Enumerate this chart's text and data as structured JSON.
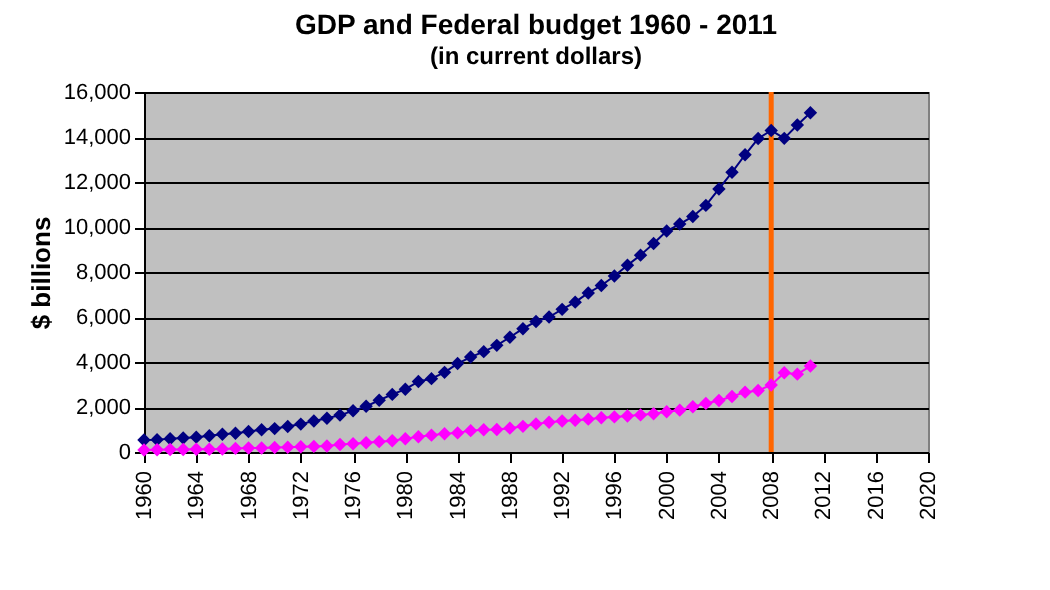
{
  "chart_data": {
    "type": "line",
    "title": "GDP and Federal budget 1960 - 2011",
    "subtitle": "(in current dollars)",
    "ylabel": "$ billions",
    "x": [
      1960,
      1961,
      1962,
      1963,
      1964,
      1965,
      1966,
      1967,
      1968,
      1969,
      1970,
      1971,
      1972,
      1973,
      1974,
      1975,
      1976,
      1977,
      1978,
      1979,
      1980,
      1981,
      1982,
      1983,
      1984,
      1985,
      1986,
      1987,
      1988,
      1989,
      1990,
      1991,
      1992,
      1993,
      1994,
      1995,
      1996,
      1997,
      1998,
      1999,
      2000,
      2001,
      2002,
      2003,
      2004,
      2005,
      2006,
      2007,
      2008,
      2009,
      2010,
      2011
    ],
    "series": [
      {
        "color": "#000080",
        "values": [
          530,
          550,
          590,
          620,
          660,
          720,
          790,
          830,
          910,
          990,
          1040,
          1130,
          1240,
          1380,
          1500,
          1640,
          1830,
          2030,
          2300,
          2560,
          2790,
          3130,
          3260,
          3540,
          3930,
          4220,
          4460,
          4740,
          5100,
          5480,
          5800,
          6000,
          6340,
          6660,
          7070,
          7400,
          7820,
          8300,
          8750,
          9270,
          9820,
          10130,
          10470,
          10960,
          11690,
          12430,
          13210,
          13930,
          14290,
          13940,
          14530,
          15080
        ]
      },
      {
        "color": "#ff00ff",
        "values": [
          90,
          100,
          110,
          110,
          120,
          120,
          130,
          160,
          180,
          180,
          200,
          210,
          230,
          250,
          270,
          330,
          370,
          410,
          460,
          500,
          590,
          680,
          750,
          810,
          850,
          950,
          990,
          1000,
          1060,
          1140,
          1250,
          1320,
          1380,
          1410,
          1460,
          1520,
          1560,
          1600,
          1650,
          1700,
          1790,
          1860,
          2010,
          2160,
          2290,
          2470,
          2660,
          2730,
          2980,
          3520,
          3460,
          3820
        ]
      }
    ],
    "xlim": [
      1960,
      2020
    ],
    "xticks": [
      1960,
      1964,
      1968,
      1972,
      1976,
      1980,
      1984,
      1988,
      1992,
      1996,
      2000,
      2004,
      2008,
      2012,
      2016,
      2020
    ],
    "ylim": [
      0,
      16000
    ],
    "yticks": [
      0,
      {
        "value": 2000,
        "label": "2,000"
      },
      {
        "value": 4000,
        "label": "4,000"
      },
      {
        "value": 6000,
        "label": "6,000"
      },
      {
        "value": 8000,
        "label": "8,000"
      },
      {
        "value": 10000,
        "label": "10,000"
      },
      {
        "value": 12000,
        "label": "12,000"
      },
      {
        "value": 14000,
        "label": "14,000"
      },
      {
        "value": 16000,
        "label": "16,000"
      }
    ],
    "ref_lines": [
      {
        "axis": "x",
        "value": 2008,
        "color": "#ff6600"
      }
    ],
    "grid": "y",
    "marker": "diamond",
    "line_style": "solid",
    "legend": false
  }
}
